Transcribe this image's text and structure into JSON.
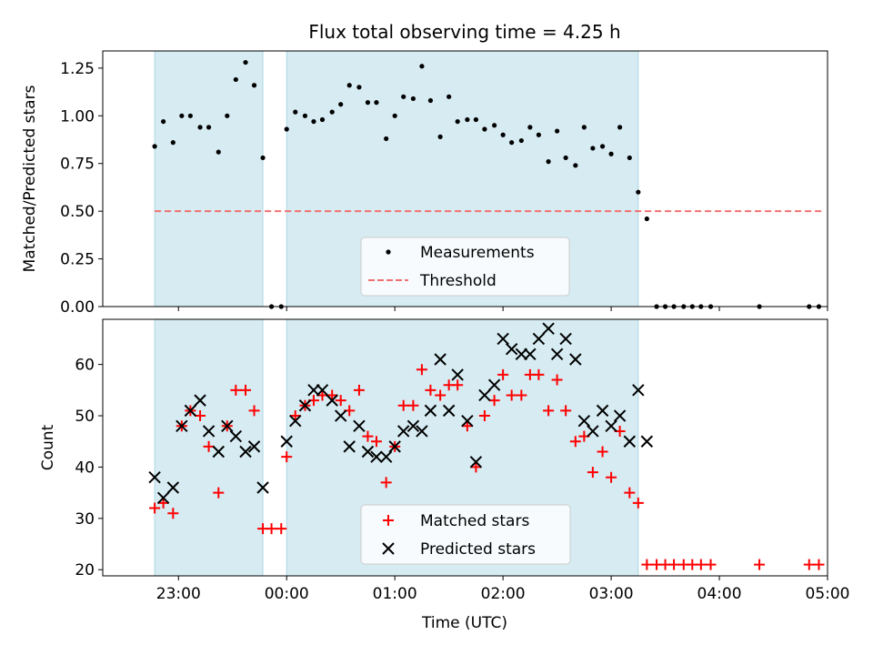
{
  "chart_data": [
    {
      "type": "scatter",
      "title": "Flux total observing time = 4.25 h",
      "ylabel": "Matched/Predicted stars",
      "xlabel": "",
      "x_unit": "hours after 22:00 UTC",
      "xlim": [
        0.3,
        7.0
      ],
      "ylim": [
        0.0,
        1.34
      ],
      "yticks": [
        0.0,
        0.25,
        0.5,
        0.75,
        1.0,
        1.25
      ],
      "ytick_labels": [
        "0.00",
        "0.25",
        "0.50",
        "0.75",
        "1.00",
        "1.25"
      ],
      "shaded_intervals": [
        [
          0.78,
          1.78
        ],
        [
          2.0,
          5.25
        ]
      ],
      "legend": {
        "placement": "lower center",
        "entries": [
          "Measurements",
          "Threshold"
        ]
      },
      "series": [
        {
          "name": "Measurements",
          "style": "dot",
          "color": "#000000",
          "x": [
            0.78,
            0.86,
            0.95,
            1.03,
            1.11,
            1.2,
            1.28,
            1.37,
            1.45,
            1.53,
            1.62,
            1.7,
            1.78,
            1.86,
            1.95,
            2.0,
            2.08,
            2.17,
            2.25,
            2.33,
            2.42,
            2.5,
            2.58,
            2.67,
            2.75,
            2.83,
            2.92,
            3.0,
            3.08,
            3.17,
            3.25,
            3.33,
            3.42,
            3.5,
            3.58,
            3.67,
            3.75,
            3.83,
            3.92,
            4.0,
            4.08,
            4.17,
            4.25,
            4.33,
            4.42,
            4.5,
            4.58,
            4.67,
            4.75,
            4.83,
            4.92,
            5.0,
            5.08,
            5.17,
            5.25,
            5.33,
            5.42,
            5.5,
            5.58,
            5.67,
            5.75,
            5.83,
            5.92,
            6.37,
            6.83,
            6.92
          ],
          "y": [
            0.84,
            0.97,
            0.86,
            1.0,
            1.0,
            0.94,
            0.94,
            0.81,
            1.0,
            1.19,
            1.28,
            1.16,
            0.78,
            0.0,
            0.0,
            0.93,
            1.02,
            1.0,
            0.97,
            0.98,
            1.02,
            1.06,
            1.16,
            1.15,
            1.07,
            1.07,
            0.88,
            1.0,
            1.1,
            1.09,
            1.26,
            1.08,
            0.89,
            1.1,
            0.97,
            0.98,
            0.98,
            0.93,
            0.95,
            0.9,
            0.86,
            0.87,
            0.94,
            0.9,
            0.76,
            0.92,
            0.78,
            0.74,
            0.94,
            0.83,
            0.84,
            0.8,
            0.94,
            0.78,
            0.6,
            0.46,
            0.0,
            0.0,
            0.0,
            0.0,
            0.0,
            0.0,
            0.0,
            0.0,
            0.0,
            0.0
          ]
        },
        {
          "name": "Threshold",
          "style": "dashed",
          "color": "#f07070",
          "x": [
            0.78,
            6.97
          ],
          "y": [
            0.5,
            0.5
          ]
        }
      ]
    },
    {
      "type": "scatter",
      "title": "",
      "xlabel": "Time (UTC)",
      "ylabel": "Count",
      "x_unit": "hours after 22:00 UTC",
      "xlim": [
        0.3,
        7.0
      ],
      "ylim": [
        18.8,
        68.8
      ],
      "yticks": [
        20,
        30,
        40,
        50,
        60
      ],
      "ytick_labels": [
        "20",
        "30",
        "40",
        "50",
        "60"
      ],
      "xticks": [
        1,
        2,
        3,
        4,
        5,
        6,
        7
      ],
      "xtick_labels": [
        "23:00",
        "00:00",
        "01:00",
        "02:00",
        "03:00",
        "04:00",
        "05:00"
      ],
      "shaded_intervals": [
        [
          0.78,
          1.78
        ],
        [
          2.0,
          5.25
        ]
      ],
      "legend": {
        "placement": "lower center",
        "entries": [
          "Matched stars",
          "Predicted stars"
        ]
      },
      "series": [
        {
          "name": "Matched stars",
          "style": "plus",
          "color": "#ff0000",
          "x": [
            0.78,
            0.86,
            0.95,
            1.03,
            1.11,
            1.2,
            1.28,
            1.37,
            1.45,
            1.53,
            1.62,
            1.7,
            1.78,
            1.86,
            1.95,
            2.0,
            2.08,
            2.17,
            2.25,
            2.33,
            2.42,
            2.5,
            2.58,
            2.67,
            2.75,
            2.83,
            2.92,
            3.0,
            3.08,
            3.17,
            3.25,
            3.33,
            3.42,
            3.5,
            3.58,
            3.67,
            3.75,
            3.83,
            3.92,
            4.0,
            4.08,
            4.17,
            4.25,
            4.33,
            4.42,
            4.5,
            4.58,
            4.67,
            4.75,
            4.83,
            4.92,
            5.0,
            5.08,
            5.17,
            5.25,
            5.33,
            5.42,
            5.5,
            5.58,
            5.67,
            5.75,
            5.83,
            5.92,
            6.37,
            6.83,
            6.92
          ],
          "y": [
            32,
            33,
            31,
            48,
            51,
            50,
            44,
            35,
            48,
            55,
            55,
            51,
            28,
            28,
            28,
            42,
            50,
            52,
            53,
            54,
            54,
            53,
            51,
            55,
            46,
            45,
            37,
            44,
            52,
            52,
            59,
            55,
            54,
            56,
            56,
            48,
            40,
            50,
            53,
            58,
            54,
            54,
            58,
            58,
            51,
            57,
            51,
            45,
            46,
            39,
            43,
            38,
            47,
            35,
            33,
            21,
            21,
            21,
            21,
            21,
            21,
            21,
            21,
            21,
            21,
            21
          ]
        },
        {
          "name": "Predicted stars",
          "style": "x",
          "color": "#000000",
          "x": [
            0.78,
            0.86,
            0.95,
            1.03,
            1.11,
            1.2,
            1.28,
            1.37,
            1.45,
            1.53,
            1.62,
            1.7,
            1.78,
            2.0,
            2.08,
            2.17,
            2.25,
            2.33,
            2.42,
            2.5,
            2.58,
            2.67,
            2.75,
            2.83,
            2.92,
            3.0,
            3.08,
            3.17,
            3.25,
            3.33,
            3.42,
            3.5,
            3.58,
            3.67,
            3.75,
            3.83,
            3.92,
            4.0,
            4.08,
            4.17,
            4.25,
            4.33,
            4.42,
            4.5,
            4.58,
            4.67,
            4.75,
            4.83,
            4.92,
            5.0,
            5.08,
            5.17,
            5.25,
            5.33
          ],
          "y": [
            38,
            34,
            36,
            48,
            51,
            53,
            47,
            43,
            48,
            46,
            43,
            44,
            36,
            45,
            49,
            52,
            55,
            55,
            53,
            50,
            44,
            48,
            43,
            42,
            42,
            44,
            47,
            48,
            47,
            51,
            61,
            51,
            58,
            49,
            41,
            54,
            56,
            65,
            63,
            62,
            62,
            65,
            67,
            62,
            65,
            61,
            49,
            47,
            51,
            48,
            50,
            45,
            55,
            45
          ]
        }
      ]
    }
  ]
}
